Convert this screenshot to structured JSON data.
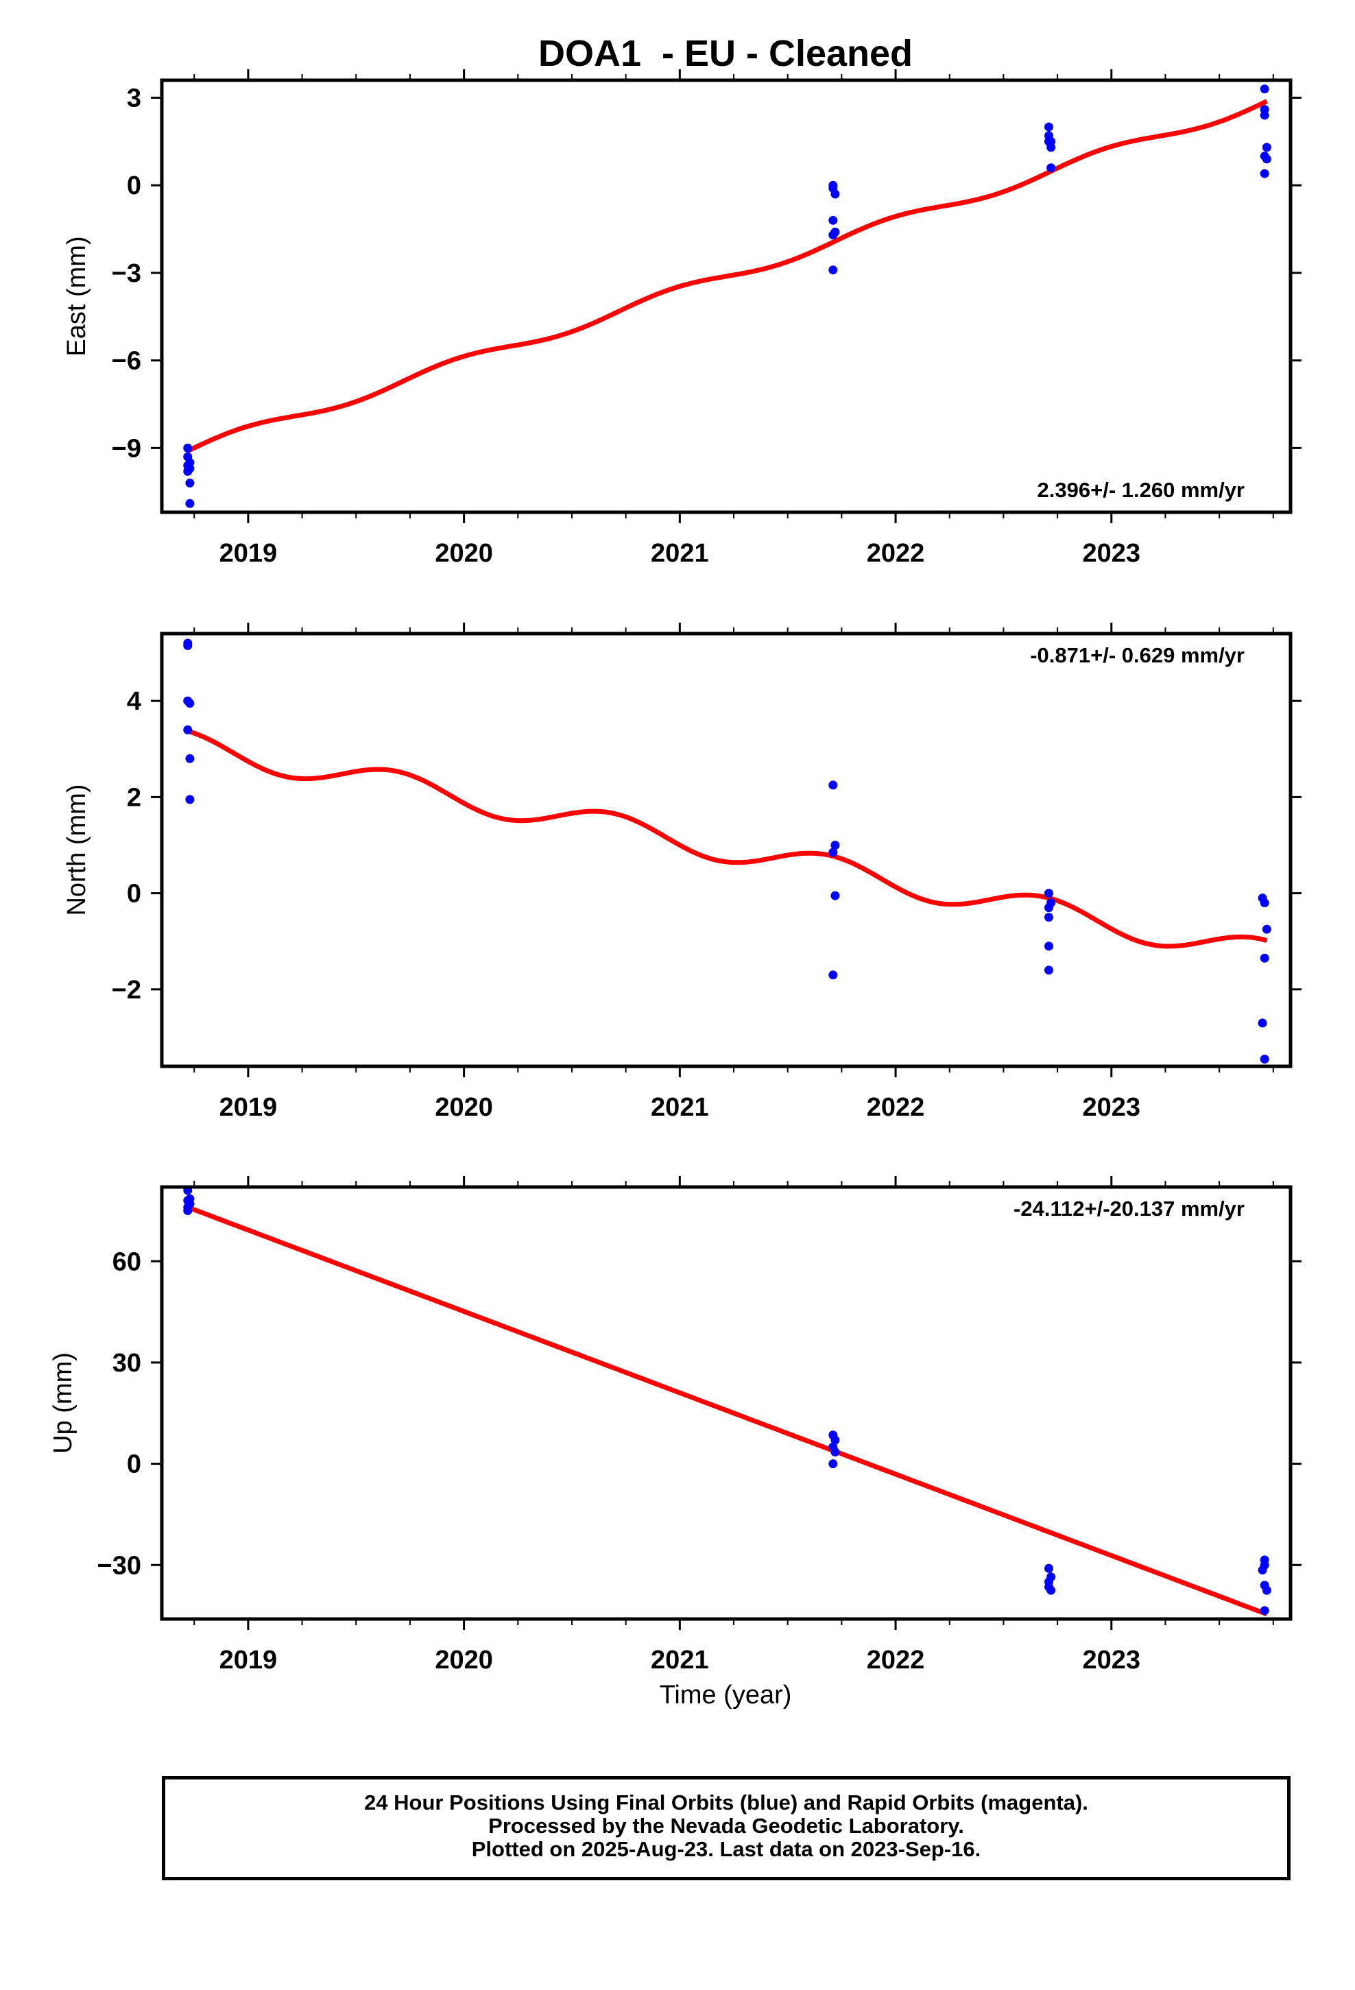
{
  "title": "DOA1  - EU - Cleaned",
  "xlabel": "Time (year)",
  "footer": {
    "line1": "24 Hour Positions Using Final Orbits (blue) and Rapid Orbits (magenta).",
    "line2": "Processed by the Nevada Geodetic Laboratory.",
    "line3": "Plotted on 2025-Aug-23. Last data on 2023-Sep-16."
  },
  "colors": {
    "points": "#0000ff",
    "fit": "#ff0000",
    "axes": "#000000"
  },
  "chart_data": [
    {
      "type": "scatter",
      "ylabel": "East (mm)",
      "rate_label": "2.396+/- 1.260 mm/yr",
      "rate_position": "bottom-right",
      "xlim": [
        2018.6,
        2023.83
      ],
      "ylim": [
        -11.2,
        3.6
      ],
      "x_ticks": [
        2019,
        2020,
        2021,
        2022,
        2023
      ],
      "x_tick_labels": [
        "2019",
        "2020",
        "2021",
        "2022",
        "2023"
      ],
      "y_ticks": [
        -9,
        -6,
        -3,
        0,
        3
      ],
      "y_tick_labels": [
        "−9",
        "−6",
        "−3",
        "0",
        "3"
      ],
      "grid": false,
      "points": {
        "x": [
          2018.72,
          2018.72,
          2018.72,
          2018.72,
          2018.73,
          2018.73,
          2018.73,
          2018.73,
          2021.71,
          2021.71,
          2021.72,
          2021.71,
          2021.72,
          2021.71,
          2021.71,
          2022.71,
          2022.71,
          2022.72,
          2022.72,
          2022.71,
          2022.72,
          2023.71,
          2023.71,
          2023.71,
          2023.72,
          2023.71,
          2023.72,
          2023.71
        ],
        "y": [
          -9.0,
          -9.3,
          -9.6,
          -9.8,
          -9.7,
          -10.2,
          -10.9,
          -9.5,
          0.0,
          -0.1,
          -0.3,
          -1.2,
          -1.6,
          -1.7,
          -2.9,
          2.0,
          1.7,
          1.5,
          1.3,
          1.5,
          0.6,
          3.3,
          2.6,
          2.4,
          1.3,
          1.0,
          0.9,
          0.4
        ]
      },
      "fit": {
        "model": "linear + annual",
        "start": 2018.72,
        "end": 2023.72,
        "intercept": -9.1,
        "rate": 2.396,
        "annual_amplitude": 0.18,
        "annual_phase": 0.0
      }
    },
    {
      "type": "scatter",
      "ylabel": "North (mm)",
      "rate_label": "-0.871+/- 0.629 mm/yr",
      "rate_position": "top-right",
      "xlim": [
        2018.6,
        2023.83
      ],
      "ylim": [
        -3.6,
        5.4
      ],
      "x_ticks": [
        2019,
        2020,
        2021,
        2022,
        2023
      ],
      "x_tick_labels": [
        "2019",
        "2020",
        "2021",
        "2022",
        "2023"
      ],
      "y_ticks": [
        -2,
        0,
        2,
        4
      ],
      "y_tick_labels": [
        "−2",
        "0",
        "2",
        "4"
      ],
      "grid": false,
      "points": {
        "x": [
          2018.72,
          2018.72,
          2018.72,
          2018.73,
          2018.72,
          2018.73,
          2018.73,
          2021.71,
          2021.72,
          2021.71,
          2021.72,
          2021.71,
          2022.71,
          2022.72,
          2022.71,
          2022.71,
          2022.71,
          2022.71,
          2023.7,
          2023.71,
          2023.72,
          2023.71,
          2023.7,
          2023.71
        ],
        "y": [
          5.2,
          5.15,
          4.0,
          3.95,
          3.4,
          2.8,
          1.95,
          2.25,
          1.0,
          0.85,
          -0.05,
          -1.7,
          0.0,
          -0.2,
          -0.5,
          -1.1,
          -1.6,
          -0.3,
          -0.1,
          -0.2,
          -0.75,
          -1.35,
          -2.7,
          -3.45
        ]
      },
      "fit": {
        "model": "linear + annual",
        "start": 2018.72,
        "end": 2023.72,
        "intercept": 3.1,
        "rate": -0.871,
        "annual_amplitude": 0.28,
        "annual_phase": 1.8
      }
    },
    {
      "type": "scatter",
      "ylabel": "Up (mm)",
      "rate_label": "-24.112+/-20.137 mm/yr",
      "rate_position": "top-right",
      "xlim": [
        2018.6,
        2023.83
      ],
      "ylim": [
        -46,
        82
      ],
      "x_ticks": [
        2019,
        2020,
        2021,
        2022,
        2023
      ],
      "x_tick_labels": [
        "2019",
        "2020",
        "2021",
        "2022",
        "2023"
      ],
      "y_ticks": [
        -30,
        0,
        30,
        60
      ],
      "y_tick_labels": [
        "−30",
        "0",
        "30",
        "60"
      ],
      "grid": false,
      "points": {
        "x": [
          2018.72,
          2018.72,
          2018.72,
          2018.73,
          2018.72,
          2018.73,
          2021.71,
          2021.72,
          2021.71,
          2021.72,
          2021.71,
          2022.71,
          2022.72,
          2022.71,
          2022.71,
          2022.72,
          2023.71,
          2023.71,
          2023.7,
          2023.71,
          2023.72,
          2023.71
        ],
        "y": [
          81.0,
          78.0,
          76.0,
          77.0,
          75.0,
          78.5,
          8.5,
          7.0,
          5.0,
          3.5,
          0.0,
          -31.0,
          -33.5,
          -35.0,
          -36.5,
          -37.5,
          -28.5,
          -30.0,
          -31.5,
          -36.0,
          -37.5,
          -43.5
        ]
      },
      "fit": {
        "model": "linear",
        "start": 2018.72,
        "end": 2023.72,
        "intercept": 76.0,
        "rate": -24.112,
        "annual_amplitude": 0,
        "annual_phase": 0
      }
    }
  ]
}
